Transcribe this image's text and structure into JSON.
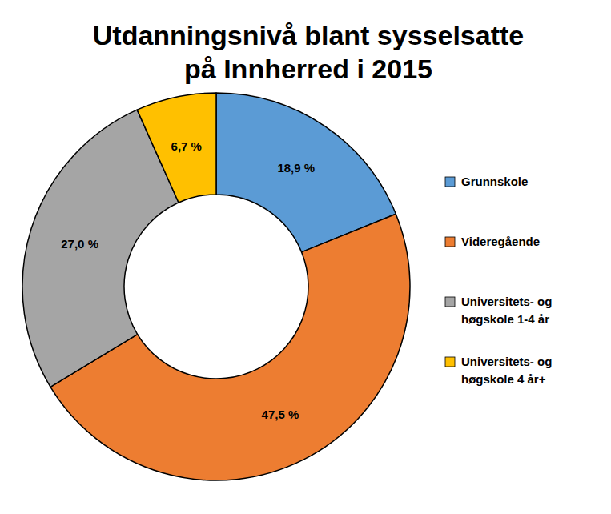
{
  "chart_data": {
    "type": "donut",
    "title": "Utdanningsnivå blant sysselsatte på Innherred i 2015",
    "categories": [
      "Grunnskole",
      "Videregående",
      "Universitets- og høgskole 1-4 år",
      "Universitets- og høgskole 4 år+"
    ],
    "values": [
      18.9,
      47.5,
      27.0,
      6.7
    ],
    "value_labels": [
      "18,9 %",
      "47,5 %",
      "27,0 %",
      "6,7 %"
    ],
    "colors": [
      "#5b9bd5",
      "#ed7d31",
      "#a5a5a5",
      "#ffc000"
    ],
    "data_labels": true,
    "legend": "right"
  }
}
